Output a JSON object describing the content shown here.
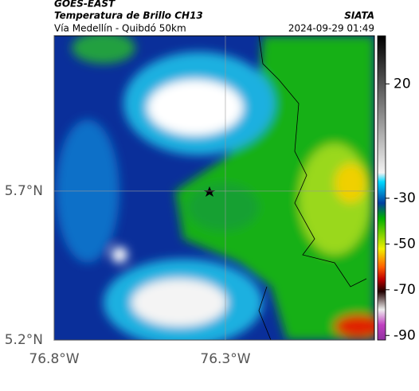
{
  "header": {
    "satellite": "GOES-EAST",
    "product": "Temperatura de Brillo CH13",
    "source": "SIATA",
    "region": "Vía Medellín - Quibdó 50km",
    "timestamp": "2024-09-29 01:49"
  },
  "map": {
    "xlim": [
      -76.8,
      -75.865
    ],
    "ylim": [
      5.2,
      6.221
    ],
    "xticks": [
      {
        "value": -76.8,
        "label": "76.8°W"
      },
      {
        "value": -76.3,
        "label": "76.3°W"
      }
    ],
    "yticks": [
      {
        "value": 5.7,
        "label": "5.7°N"
      },
      {
        "value": 5.2,
        "label": "5.2°N"
      }
    ]
  },
  "colorbar": {
    "lim": [
      41,
      -92
    ],
    "ticks": [
      20,
      -30,
      -50,
      -70,
      -90
    ]
  }
}
